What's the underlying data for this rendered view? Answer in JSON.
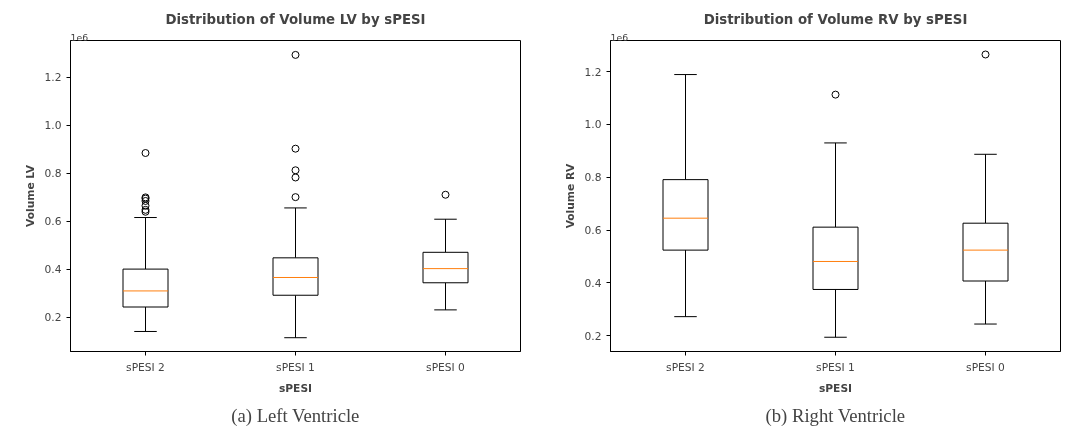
{
  "chart_data": [
    {
      "type": "box",
      "title": "Distribution of Volume LV by sPESI",
      "xlabel": "sPESI",
      "ylabel": "Volume LV",
      "annotations": [
        "1e6",
        "(a) Left Ventricle"
      ],
      "categories": [
        "sPESI 2",
        "sPESI 1",
        "sPESI 0"
      ],
      "ylim": [
        0.0575,
        1.354
      ],
      "yticks": [
        0.2,
        0.4,
        0.6,
        0.8,
        {
          "value": 1.0,
          "label": "1.0"
        },
        1.2
      ],
      "grid": false,
      "series": [
        {
          "color": "#000000",
          "boxes": [
            {
              "low": 0.141,
              "q1": 0.243,
              "median": 0.31,
              "q3": 0.401,
              "high": 0.616,
              "outliers": [
                0.885,
                0.7,
                0.695,
                0.685,
                0.665,
                0.648,
                0.64
              ]
            },
            {
              "low": 0.115,
              "q1": 0.292,
              "median": 0.366,
              "q3": 0.448,
              "high": 0.656,
              "outliers": [
                1.294,
                0.903,
                0.813,
                0.783,
                0.701
              ]
            },
            {
              "low": 0.231,
              "q1": 0.344,
              "median": 0.403,
              "q3": 0.471,
              "high": 0.609,
              "outliers": [
                0.711
              ]
            }
          ]
        }
      ]
    },
    {
      "type": "box",
      "title": "Distribution of Volume RV by sPESI",
      "xlabel": "sPESI",
      "ylabel": "Volume RV",
      "annotations": [
        "1e6",
        "(b) Right Ventricle"
      ],
      "categories": [
        "sPESI 2",
        "sPESI 1",
        "sPESI 0"
      ],
      "ylim": [
        0.14,
        1.318
      ],
      "yticks": [
        0.2,
        0.4,
        0.6,
        0.8,
        {
          "value": 1.0,
          "label": "1.0"
        },
        1.2
      ],
      "grid": false,
      "series": [
        {
          "color": "#000000",
          "boxes": [
            {
              "low": 0.272,
              "q1": 0.524,
              "median": 0.645,
              "q3": 0.791,
              "high": 1.189
            },
            {
              "low": 0.194,
              "q1": 0.375,
              "median": 0.481,
              "q3": 0.611,
              "high": 0.93,
              "outliers": [
                1.113
              ]
            },
            {
              "low": 0.244,
              "q1": 0.407,
              "median": 0.524,
              "q3": 0.626,
              "high": 0.887,
              "outliers": [
                1.265
              ]
            }
          ]
        }
      ]
    }
  ]
}
